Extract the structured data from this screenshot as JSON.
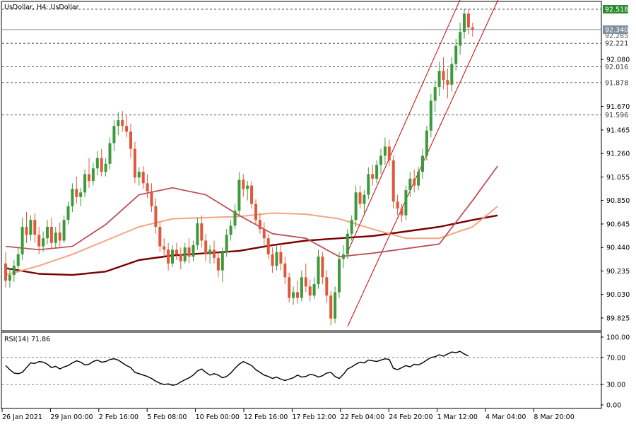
{
  "chart_data": [
    {
      "type": "candlestick",
      "symbol_label": "UsDollar, H4:  UsDollar",
      "ylim": [
        89.72,
        92.58
      ],
      "y_ticks": [
        "92.080",
        "91.670",
        "91.465",
        "91.260",
        "91.055",
        "90.850",
        "90.645",
        "90.440",
        "90.235",
        "90.030",
        "89.825"
      ],
      "x_ticks": [
        "26 Jan 2021",
        "29 Jan 00:00",
        "2 Feb 16:00",
        "5 Feb 08:00",
        "10 Feb 00:00",
        "12 Feb 16:00",
        "17 Feb 12:00",
        "22 Feb 04:00",
        "24 Feb 20:00",
        "1 Mar 12:00",
        "4 Mar 04:00",
        "8 Mar 20:00"
      ],
      "current_price": "92.340",
      "current_price_partial": "92.285",
      "levels": [
        {
          "value": 92.518,
          "label": "92.518",
          "highlight": true
        },
        {
          "value": 92.221,
          "label": "92.221",
          "highlight": false
        },
        {
          "value": 92.016,
          "label": "92.016",
          "highlight": false
        },
        {
          "value": 91.878,
          "label": "91.878",
          "highlight": false
        },
        {
          "value": 91.596,
          "label": "91.596",
          "highlight": false
        }
      ],
      "candles": [
        {
          "o": 90.3,
          "h": 90.4,
          "l": 90.09,
          "c": 90.15
        },
        {
          "o": 90.15,
          "h": 90.26,
          "l": 90.09,
          "c": 90.2
        },
        {
          "o": 90.2,
          "h": 90.33,
          "l": 90.14,
          "c": 90.28
        },
        {
          "o": 90.28,
          "h": 90.44,
          "l": 90.22,
          "c": 90.38
        },
        {
          "o": 90.38,
          "h": 90.7,
          "l": 90.33,
          "c": 90.62
        },
        {
          "o": 90.62,
          "h": 90.75,
          "l": 90.48,
          "c": 90.55
        },
        {
          "o": 90.55,
          "h": 90.72,
          "l": 90.5,
          "c": 90.68
        },
        {
          "o": 90.68,
          "h": 90.74,
          "l": 90.48,
          "c": 90.55
        },
        {
          "o": 90.55,
          "h": 90.62,
          "l": 90.38,
          "c": 90.45
        },
        {
          "o": 90.45,
          "h": 90.58,
          "l": 90.4,
          "c": 90.52
        },
        {
          "o": 90.52,
          "h": 90.68,
          "l": 90.47,
          "c": 90.62
        },
        {
          "o": 90.62,
          "h": 90.7,
          "l": 90.43,
          "c": 90.48
        },
        {
          "o": 90.48,
          "h": 90.62,
          "l": 90.44,
          "c": 90.57
        },
        {
          "o": 90.57,
          "h": 90.66,
          "l": 90.45,
          "c": 90.5
        },
        {
          "o": 90.5,
          "h": 90.72,
          "l": 90.48,
          "c": 90.68
        },
        {
          "o": 90.68,
          "h": 90.84,
          "l": 90.64,
          "c": 90.8
        },
        {
          "o": 90.8,
          "h": 91.0,
          "l": 90.75,
          "c": 90.95
        },
        {
          "o": 90.95,
          "h": 91.06,
          "l": 90.82,
          "c": 90.88
        },
        {
          "o": 90.88,
          "h": 90.96,
          "l": 90.8,
          "c": 90.92
        },
        {
          "o": 90.92,
          "h": 91.12,
          "l": 90.88,
          "c": 91.08
        },
        {
          "o": 91.08,
          "h": 91.22,
          "l": 90.96,
          "c": 91.02
        },
        {
          "o": 91.02,
          "h": 91.18,
          "l": 90.98,
          "c": 91.13
        },
        {
          "o": 91.13,
          "h": 91.28,
          "l": 91.07,
          "c": 91.22
        },
        {
          "o": 91.22,
          "h": 91.3,
          "l": 91.06,
          "c": 91.1
        },
        {
          "o": 91.1,
          "h": 91.22,
          "l": 91.06,
          "c": 91.17
        },
        {
          "o": 91.17,
          "h": 91.4,
          "l": 91.12,
          "c": 91.35
        },
        {
          "o": 91.35,
          "h": 91.55,
          "l": 91.28,
          "c": 91.5
        },
        {
          "o": 91.5,
          "h": 91.62,
          "l": 91.42,
          "c": 91.55
        },
        {
          "o": 91.55,
          "h": 91.63,
          "l": 91.45,
          "c": 91.5
        },
        {
          "o": 91.5,
          "h": 91.6,
          "l": 91.4,
          "c": 91.45
        },
        {
          "o": 91.45,
          "h": 91.52,
          "l": 91.22,
          "c": 91.3
        },
        {
          "o": 91.3,
          "h": 91.36,
          "l": 91.0,
          "c": 91.05
        },
        {
          "o": 91.05,
          "h": 91.14,
          "l": 90.98,
          "c": 91.1
        },
        {
          "o": 91.1,
          "h": 91.15,
          "l": 90.95,
          "c": 91.0
        },
        {
          "o": 91.0,
          "h": 91.08,
          "l": 90.87,
          "c": 90.93
        },
        {
          "o": 90.93,
          "h": 91.0,
          "l": 90.75,
          "c": 90.8
        },
        {
          "o": 90.8,
          "h": 90.87,
          "l": 90.56,
          "c": 90.62
        },
        {
          "o": 90.62,
          "h": 90.66,
          "l": 90.4,
          "c": 90.45
        },
        {
          "o": 90.45,
          "h": 90.52,
          "l": 90.36,
          "c": 90.42
        },
        {
          "o": 90.42,
          "h": 90.48,
          "l": 90.24,
          "c": 90.3
        },
        {
          "o": 90.3,
          "h": 90.46,
          "l": 90.27,
          "c": 90.42
        },
        {
          "o": 90.42,
          "h": 90.48,
          "l": 90.33,
          "c": 90.38
        },
        {
          "o": 90.38,
          "h": 90.44,
          "l": 90.25,
          "c": 90.32
        },
        {
          "o": 90.32,
          "h": 90.48,
          "l": 90.3,
          "c": 90.44
        },
        {
          "o": 90.44,
          "h": 90.52,
          "l": 90.3,
          "c": 90.36
        },
        {
          "o": 90.36,
          "h": 90.5,
          "l": 90.32,
          "c": 90.46
        },
        {
          "o": 90.46,
          "h": 90.7,
          "l": 90.42,
          "c": 90.65
        },
        {
          "o": 90.65,
          "h": 90.72,
          "l": 90.44,
          "c": 90.5
        },
        {
          "o": 90.5,
          "h": 90.56,
          "l": 90.32,
          "c": 90.38
        },
        {
          "o": 90.38,
          "h": 90.46,
          "l": 90.3,
          "c": 90.42
        },
        {
          "o": 90.42,
          "h": 90.5,
          "l": 90.3,
          "c": 90.35
        },
        {
          "o": 90.35,
          "h": 90.4,
          "l": 90.18,
          "c": 90.24
        },
        {
          "o": 90.24,
          "h": 90.44,
          "l": 90.14,
          "c": 90.4
        },
        {
          "o": 90.4,
          "h": 90.6,
          "l": 90.36,
          "c": 90.55
        },
        {
          "o": 90.55,
          "h": 90.68,
          "l": 90.5,
          "c": 90.63
        },
        {
          "o": 90.63,
          "h": 90.82,
          "l": 90.6,
          "c": 90.76
        },
        {
          "o": 90.76,
          "h": 91.1,
          "l": 90.72,
          "c": 91.03
        },
        {
          "o": 91.03,
          "h": 91.08,
          "l": 90.88,
          "c": 90.95
        },
        {
          "o": 90.95,
          "h": 91.02,
          "l": 90.85,
          "c": 90.98
        },
        {
          "o": 90.98,
          "h": 91.02,
          "l": 90.78,
          "c": 90.82
        },
        {
          "o": 90.82,
          "h": 90.86,
          "l": 90.64,
          "c": 90.68
        },
        {
          "o": 90.68,
          "h": 90.74,
          "l": 90.56,
          "c": 90.6
        },
        {
          "o": 90.6,
          "h": 90.66,
          "l": 90.46,
          "c": 90.52
        },
        {
          "o": 90.52,
          "h": 90.56,
          "l": 90.34,
          "c": 90.38
        },
        {
          "o": 90.38,
          "h": 90.44,
          "l": 90.22,
          "c": 90.28
        },
        {
          "o": 90.28,
          "h": 90.46,
          "l": 90.24,
          "c": 90.4
        },
        {
          "o": 90.4,
          "h": 90.48,
          "l": 90.24,
          "c": 90.3
        },
        {
          "o": 90.3,
          "h": 90.36,
          "l": 90.12,
          "c": 90.18
        },
        {
          "o": 90.18,
          "h": 90.22,
          "l": 89.96,
          "c": 90.0
        },
        {
          "o": 90.0,
          "h": 90.1,
          "l": 89.94,
          "c": 90.05
        },
        {
          "o": 90.05,
          "h": 90.15,
          "l": 89.95,
          "c": 90.0
        },
        {
          "o": 90.0,
          "h": 90.24,
          "l": 89.97,
          "c": 90.18
        },
        {
          "o": 90.18,
          "h": 90.3,
          "l": 90.05,
          "c": 90.1
        },
        {
          "o": 90.1,
          "h": 90.16,
          "l": 89.97,
          "c": 90.02
        },
        {
          "o": 90.02,
          "h": 90.18,
          "l": 89.99,
          "c": 90.12
        },
        {
          "o": 90.12,
          "h": 90.42,
          "l": 90.08,
          "c": 90.36
        },
        {
          "o": 90.36,
          "h": 90.4,
          "l": 90.12,
          "c": 90.18
        },
        {
          "o": 90.18,
          "h": 90.24,
          "l": 89.96,
          "c": 90.02
        },
        {
          "o": 90.02,
          "h": 90.06,
          "l": 89.76,
          "c": 89.82
        },
        {
          "o": 89.82,
          "h": 90.1,
          "l": 89.78,
          "c": 90.05
        },
        {
          "o": 90.05,
          "h": 90.4,
          "l": 90.0,
          "c": 90.34
        },
        {
          "o": 90.34,
          "h": 90.46,
          "l": 90.26,
          "c": 90.38
        },
        {
          "o": 90.38,
          "h": 90.6,
          "l": 90.34,
          "c": 90.56
        },
        {
          "o": 90.56,
          "h": 90.72,
          "l": 90.5,
          "c": 90.68
        },
        {
          "o": 90.68,
          "h": 90.98,
          "l": 90.62,
          "c": 90.92
        },
        {
          "o": 90.92,
          "h": 90.98,
          "l": 90.78,
          "c": 90.82
        },
        {
          "o": 90.82,
          "h": 90.94,
          "l": 90.74,
          "c": 90.9
        },
        {
          "o": 90.9,
          "h": 91.14,
          "l": 90.86,
          "c": 91.08
        },
        {
          "o": 91.08,
          "h": 91.16,
          "l": 90.98,
          "c": 91.04
        },
        {
          "o": 91.04,
          "h": 91.2,
          "l": 91.0,
          "c": 91.16
        },
        {
          "o": 91.16,
          "h": 91.3,
          "l": 91.08,
          "c": 91.24
        },
        {
          "o": 91.24,
          "h": 91.4,
          "l": 91.16,
          "c": 91.32
        },
        {
          "o": 91.32,
          "h": 91.38,
          "l": 91.15,
          "c": 91.2
        },
        {
          "o": 91.2,
          "h": 91.24,
          "l": 90.78,
          "c": 90.84
        },
        {
          "o": 90.84,
          "h": 90.9,
          "l": 90.72,
          "c": 90.78
        },
        {
          "o": 90.78,
          "h": 90.82,
          "l": 90.66,
          "c": 90.72
        },
        {
          "o": 90.72,
          "h": 90.98,
          "l": 90.68,
          "c": 90.94
        },
        {
          "o": 90.94,
          "h": 91.1,
          "l": 90.88,
          "c": 91.04
        },
        {
          "o": 91.04,
          "h": 91.12,
          "l": 90.92,
          "c": 90.98
        },
        {
          "o": 90.98,
          "h": 91.14,
          "l": 90.94,
          "c": 91.1
        },
        {
          "o": 91.1,
          "h": 91.3,
          "l": 91.04,
          "c": 91.24
        },
        {
          "o": 91.24,
          "h": 91.5,
          "l": 91.2,
          "c": 91.46
        },
        {
          "o": 91.46,
          "h": 91.78,
          "l": 91.4,
          "c": 91.72
        },
        {
          "o": 91.72,
          "h": 91.9,
          "l": 91.62,
          "c": 91.84
        },
        {
          "o": 91.84,
          "h": 92.06,
          "l": 91.76,
          "c": 91.98
        },
        {
          "o": 91.98,
          "h": 92.1,
          "l": 91.82,
          "c": 91.9
        },
        {
          "o": 91.9,
          "h": 92.0,
          "l": 91.74,
          "c": 91.86
        },
        {
          "o": 91.86,
          "h": 92.1,
          "l": 91.8,
          "c": 92.04
        },
        {
          "o": 92.04,
          "h": 92.26,
          "l": 91.98,
          "c": 92.2
        },
        {
          "o": 92.2,
          "h": 92.4,
          "l": 92.12,
          "c": 92.32
        },
        {
          "o": 92.32,
          "h": 92.52,
          "l": 92.26,
          "c": 92.48
        },
        {
          "o": 92.48,
          "h": 92.52,
          "l": 92.3,
          "c": 92.36
        },
        {
          "o": 92.36,
          "h": 92.4,
          "l": 92.28,
          "c": 92.34
        }
      ],
      "moving_averages": [
        {
          "color": "#7a0000",
          "width": 2.4,
          "points": [
            [
              0,
              90.26
            ],
            [
              8,
              90.21
            ],
            [
              16,
              90.2
            ],
            [
              24,
              90.23
            ],
            [
              32,
              90.33
            ],
            [
              40,
              90.37
            ],
            [
              48,
              90.39
            ],
            [
              56,
              90.41
            ],
            [
              64,
              90.46
            ],
            [
              72,
              90.5
            ],
            [
              80,
              90.52
            ],
            [
              88,
              90.54
            ],
            [
              96,
              90.58
            ],
            [
              104,
              90.62
            ],
            [
              112,
              90.68
            ],
            [
              118,
              90.72
            ]
          ]
        },
        {
          "color": "#f4a582",
          "width": 2.0,
          "points": [
            [
              0,
              90.2
            ],
            [
              8,
              90.28
            ],
            [
              16,
              90.38
            ],
            [
              24,
              90.5
            ],
            [
              32,
              90.62
            ],
            [
              40,
              90.69
            ],
            [
              48,
              90.7
            ],
            [
              56,
              90.71
            ],
            [
              64,
              90.74
            ],
            [
              72,
              90.73
            ],
            [
              80,
              90.69
            ],
            [
              88,
              90.6
            ],
            [
              96,
              90.52
            ],
            [
              104,
              90.52
            ],
            [
              112,
              90.62
            ],
            [
              118,
              90.8
            ]
          ]
        },
        {
          "color": "#c0505a",
          "width": 1.8,
          "points": [
            [
              0,
              90.45
            ],
            [
              8,
              90.42
            ],
            [
              16,
              90.45
            ],
            [
              24,
              90.64
            ],
            [
              32,
              90.9
            ],
            [
              40,
              90.96
            ],
            [
              48,
              90.9
            ],
            [
              56,
              90.72
            ],
            [
              64,
              90.56
            ],
            [
              72,
              90.52
            ],
            [
              80,
              90.36
            ],
            [
              88,
              90.39
            ],
            [
              96,
              90.43
            ],
            [
              104,
              90.47
            ],
            [
              112,
              90.85
            ],
            [
              118,
              91.15
            ]
          ]
        }
      ],
      "channel": {
        "color": "#cc0000",
        "lines": [
          [
            [
              82,
              89.75
            ],
            [
              120,
              92.75
            ]
          ],
          [
            [
              82,
              90.4
            ],
            [
              120,
              93.5
            ]
          ]
        ]
      }
    },
    {
      "type": "line",
      "indicator_label": "RSI(14) 71.86",
      "ylim": [
        0,
        100
      ],
      "y_ticks": [
        "100.00",
        "70.00",
        "30.00",
        "0.00"
      ],
      "levels": [
        70,
        30
      ],
      "values": [
        58,
        52,
        47,
        46,
        48,
        55,
        62,
        61,
        64,
        63,
        60,
        55,
        57,
        53,
        56,
        58,
        62,
        65,
        63,
        59,
        60,
        64,
        66,
        63,
        64,
        67,
        68,
        66,
        62,
        58,
        55,
        48,
        46,
        44,
        42,
        39,
        35,
        32,
        30,
        31,
        29,
        30,
        34,
        37,
        40,
        44,
        50,
        53,
        48,
        44,
        46,
        44,
        40,
        42,
        47,
        54,
        60,
        64,
        61,
        58,
        52,
        48,
        44,
        42,
        39,
        41,
        38,
        36,
        38,
        40,
        44,
        41,
        42,
        45,
        44,
        41,
        43,
        47,
        48,
        42,
        39,
        45,
        53,
        56,
        60,
        63,
        62,
        66,
        65,
        64,
        66,
        68,
        67,
        54,
        52,
        55,
        58,
        56,
        60,
        59,
        62,
        66,
        70,
        71,
        74,
        72,
        75,
        78,
        77,
        79,
        75,
        72
      ],
      "current": 71.86
    }
  ]
}
